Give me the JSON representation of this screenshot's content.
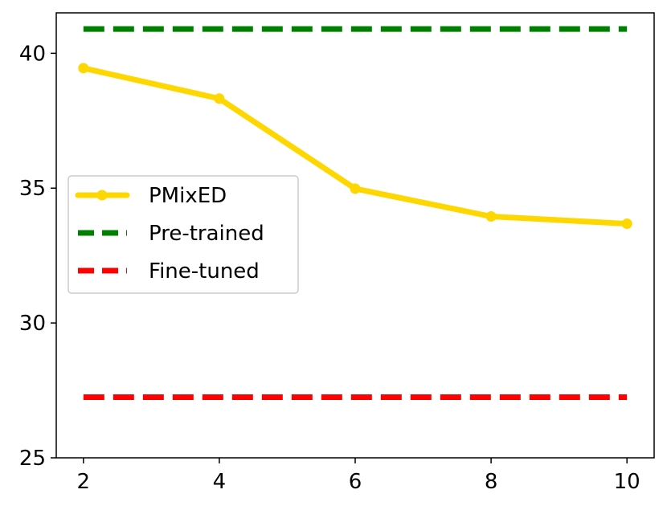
{
  "chart_data": {
    "type": "line",
    "title": "",
    "xlabel": "",
    "ylabel": "",
    "x": [
      2,
      4,
      6,
      8,
      10
    ],
    "xlim": [
      1.6,
      10.4
    ],
    "ylim": [
      25,
      41.5
    ],
    "xticks": [
      2,
      4,
      6,
      8,
      10
    ],
    "yticks": [
      25,
      30,
      35,
      40
    ],
    "xtick_labels": [
      "2",
      "4",
      "6",
      "8",
      "10"
    ],
    "ytick_labels": [
      "25",
      "30",
      "35",
      "40"
    ],
    "grid": false,
    "legend_position": "center-left",
    "series": [
      {
        "name": "PMixED",
        "style": "solid-marker",
        "color": "#FFD700",
        "values": [
          39.45,
          38.32,
          34.98,
          33.95,
          33.68
        ]
      },
      {
        "name": "Pre-trained",
        "style": "dashed",
        "color": "#008000",
        "values": [
          40.9,
          40.9,
          40.9,
          40.9,
          40.9
        ]
      },
      {
        "name": "Fine-tuned",
        "style": "dashed",
        "color": "#FF0000",
        "values": [
          27.25,
          27.25,
          27.25,
          27.25,
          27.25
        ]
      }
    ]
  }
}
